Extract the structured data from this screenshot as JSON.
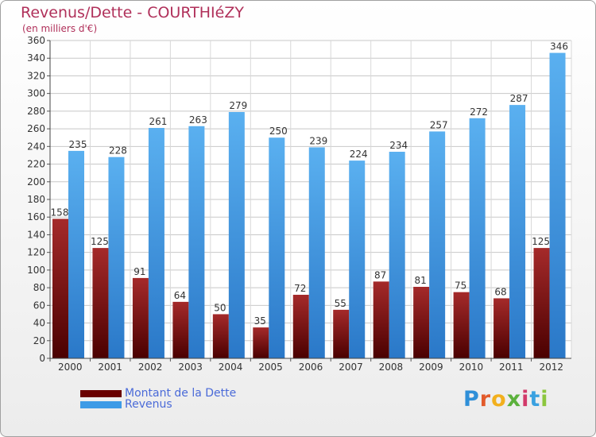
{
  "chart_data": {
    "type": "bar",
    "title": "Revenus/Dette - COURTHIéZY",
    "subtitle": "(en milliers d'€)",
    "xlabel": "",
    "ylabel": "",
    "ylim": [
      0,
      360
    ],
    "yticks": [
      0,
      20,
      40,
      60,
      80,
      100,
      120,
      140,
      160,
      180,
      200,
      220,
      240,
      260,
      280,
      300,
      320,
      340,
      360
    ],
    "grid": true,
    "categories": [
      "2000",
      "2001",
      "2002",
      "2003",
      "2004",
      "2005",
      "2006",
      "2007",
      "2008",
      "2009",
      "2010",
      "2011",
      "2012"
    ],
    "series": [
      {
        "name": "Montant de la Dette",
        "color": "#7a1010",
        "values": [
          158,
          125,
          91,
          64,
          50,
          35,
          72,
          55,
          87,
          81,
          75,
          68,
          125
        ]
      },
      {
        "name": "Revenus",
        "color": "#3e9be6",
        "values": [
          235,
          228,
          261,
          263,
          279,
          250,
          239,
          224,
          234,
          257,
          272,
          287,
          346
        ]
      }
    ],
    "legend": "bottom-left"
  },
  "logo": {
    "text": "Proxiti",
    "colors": [
      "#2f8fd8",
      "#e25a2b",
      "#f2b01e",
      "#5bb13c",
      "#d23a6a",
      "#3aa1e0",
      "#8cc63e"
    ]
  }
}
